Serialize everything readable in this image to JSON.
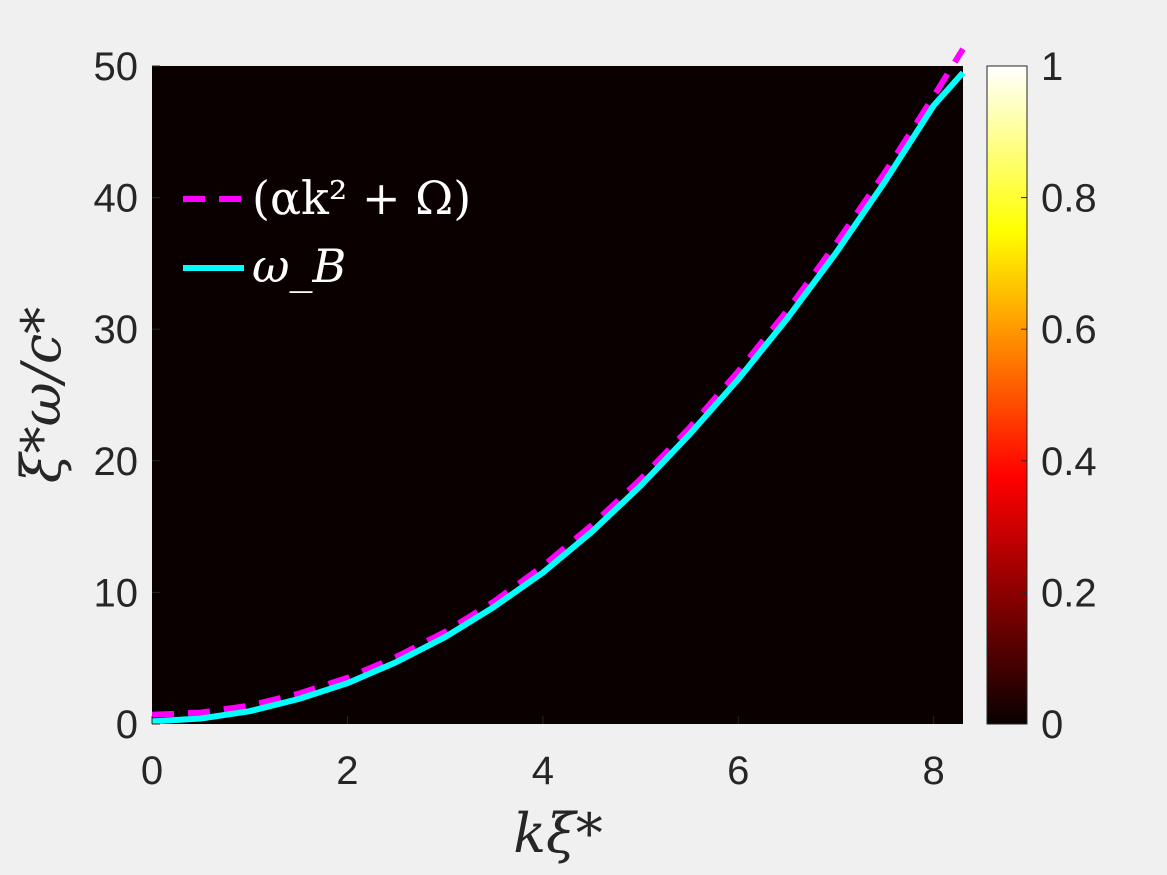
{
  "chart_data": {
    "type": "heatmap",
    "xlabel": "kξ*",
    "ylabel": "ξ*ω/c*",
    "xlim": [
      0,
      8.3
    ],
    "ylim": [
      0,
      50
    ],
    "x_ticks": [
      0,
      2,
      4,
      6,
      8
    ],
    "y_ticks": [
      0,
      10,
      20,
      30,
      40,
      50
    ],
    "x_tick_labels": [
      "0",
      "2",
      "4",
      "6",
      "8"
    ],
    "y_tick_labels": [
      "0",
      "10",
      "20",
      "30",
      "40",
      "50"
    ],
    "heatmap_value": 0,
    "colorbar": {
      "colormap": "hot",
      "range": [
        0,
        1
      ],
      "ticks": [
        0,
        0.2,
        0.4,
        0.6,
        0.8,
        1
      ],
      "tick_labels": [
        "0",
        "0.2",
        "0.4",
        "0.6",
        "0.8",
        "1"
      ]
    },
    "legend_placement": "upper-left",
    "grid": false,
    "series": [
      {
        "name": "(αk² + Ω)",
        "style": "dashed",
        "color": "#ff00ff",
        "x": [
          0,
          0.5,
          1,
          1.5,
          2,
          2.5,
          3,
          3.5,
          4,
          4.5,
          5,
          5.5,
          6,
          6.5,
          7,
          7.5,
          8,
          8.3
        ],
        "y": [
          0.7,
          0.87,
          1.4,
          2.3,
          3.5,
          5.1,
          7.0,
          9.3,
          12.0,
          15.1,
          18.6,
          22.5,
          26.8,
          31.4,
          36.5,
          41.9,
          47.7,
          51.3
        ]
      },
      {
        "name": "ω_B",
        "style": "solid",
        "color": "#00ffff",
        "x": [
          0,
          0.5,
          1,
          1.5,
          2,
          2.5,
          3,
          3.5,
          4,
          4.5,
          5,
          5.5,
          6,
          6.5,
          7,
          7.5,
          8,
          8.3
        ],
        "y": [
          0.2,
          0.42,
          0.97,
          1.9,
          3.1,
          4.7,
          6.6,
          8.9,
          11.5,
          14.6,
          18.1,
          22.0,
          26.2,
          30.8,
          35.8,
          41.2,
          47.0,
          49.5
        ]
      }
    ]
  }
}
